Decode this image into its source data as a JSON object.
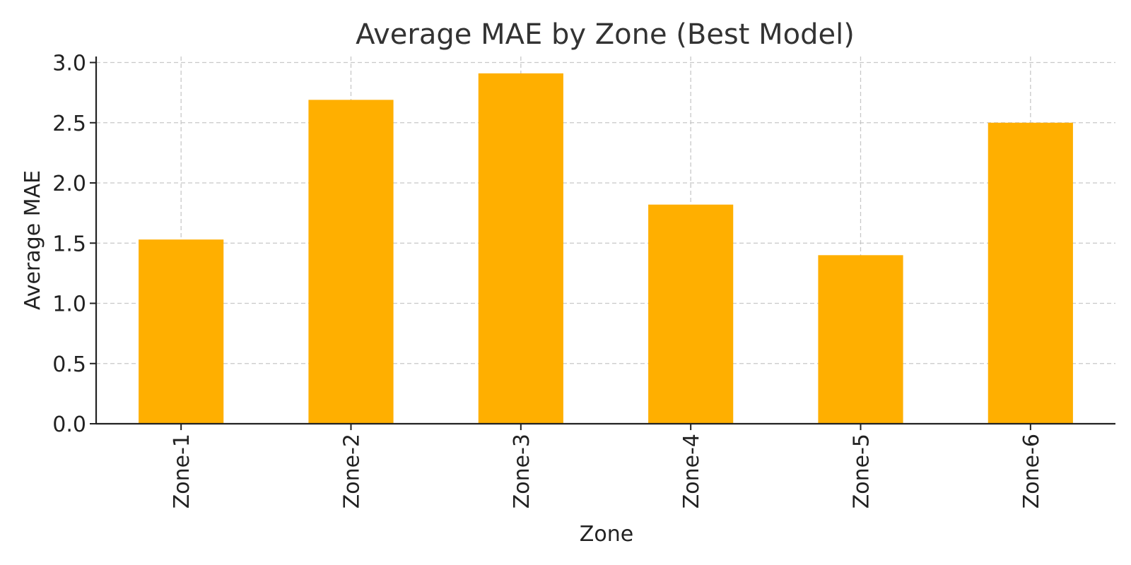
{
  "chart_data": {
    "type": "bar",
    "title": "Average MAE by Zone (Best Model)",
    "xlabel": "Zone",
    "ylabel": "Average MAE",
    "categories": [
      "Zone-1",
      "Zone-2",
      "Zone-3",
      "Zone-4",
      "Zone-5",
      "Zone-6"
    ],
    "values": [
      1.53,
      2.69,
      2.91,
      1.82,
      1.4,
      2.5
    ],
    "ylim": [
      0,
      3.05
    ],
    "yticks": [
      0.0,
      0.5,
      1.0,
      1.5,
      2.0,
      2.5,
      3.0
    ],
    "ytick_labels": [
      "0.0",
      "0.5",
      "1.0",
      "1.5",
      "2.0",
      "2.5",
      "3.0"
    ],
    "grid": true,
    "colors": {
      "bar": "#FFAF00"
    }
  }
}
